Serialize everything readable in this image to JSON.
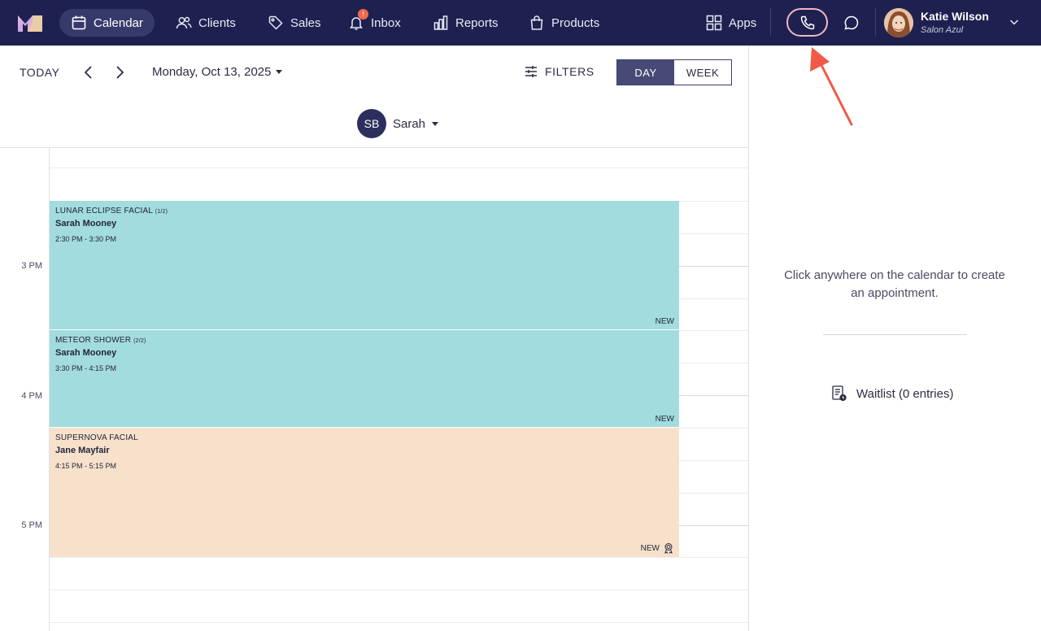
{
  "nav": {
    "items": [
      {
        "label": "Calendar",
        "icon": "calendar-icon",
        "active": true
      },
      {
        "label": "Clients",
        "icon": "users-icon",
        "active": false
      },
      {
        "label": "Sales",
        "icon": "tag-icon",
        "active": false
      },
      {
        "label": "Inbox",
        "icon": "bell-icon",
        "active": false,
        "badge": "!"
      },
      {
        "label": "Reports",
        "icon": "bar-chart-icon",
        "active": false
      },
      {
        "label": "Products",
        "icon": "bag-icon",
        "active": false
      }
    ],
    "apps_label": "Apps",
    "user": {
      "name": "Katie Wilson",
      "salon": "Salon Azul"
    },
    "colors": {
      "bar": "#1e2150",
      "active": "#363a6b",
      "phone_ring": "#f2b6c4",
      "badge": "#f06a4f"
    }
  },
  "toolbar": {
    "today_label": "TODAY",
    "date_label": "Monday, Oct 13, 2025",
    "filters_label": "FILTERS",
    "view_day": "DAY",
    "view_week": "WEEK",
    "selected_view": "DAY"
  },
  "staff": {
    "initials": "SB",
    "name": "Sarah"
  },
  "time_labels": [
    "3 PM",
    "4 PM",
    "5 PM"
  ],
  "appointments": [
    {
      "service": "LUNAR ECLIPSE FACIAL",
      "part": "(1/2)",
      "client": "Sarah Mooney",
      "time": "2:30 PM - 3:30 PM",
      "tag": "NEW",
      "color": "#a2dcde"
    },
    {
      "service": "METEOR SHOWER",
      "part": "(2/2)",
      "client": "Sarah Mooney",
      "time": "3:30 PM - 4:15 PM",
      "tag": "NEW",
      "color": "#a2dcde"
    },
    {
      "service": "SUPERNOVA FACIAL",
      "part": "",
      "client": "Jane Mayfair",
      "time": "4:15 PM - 5:15 PM",
      "tag": "NEW",
      "color": "#f7e1cb"
    }
  ],
  "side_panel": {
    "hint": "Click anywhere on the calendar to create an appointment.",
    "waitlist": "Waitlist (0 entries)"
  },
  "annotation": {
    "color": "#ef5b47"
  }
}
